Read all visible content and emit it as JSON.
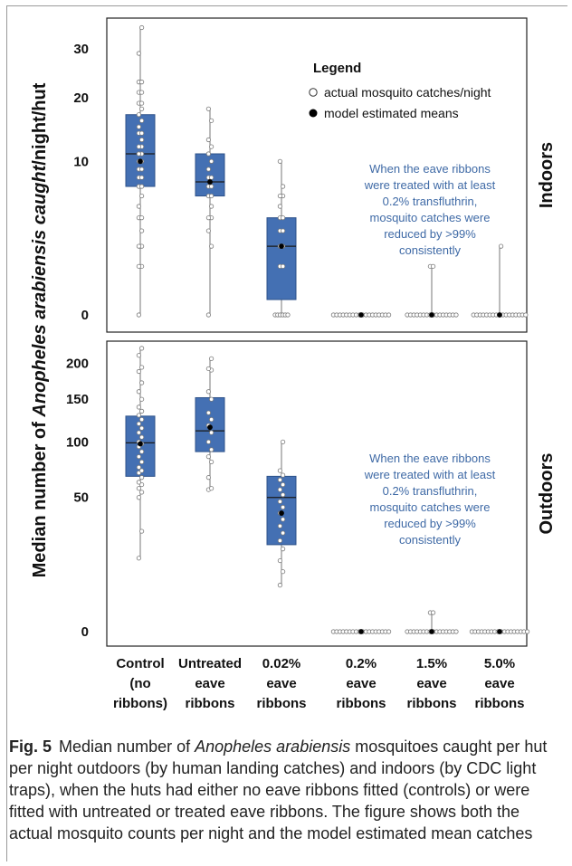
{
  "colors": {
    "box_fill": "#4470b3",
    "box_stroke": "#2e528a",
    "annotation": "#3f6aa6",
    "point_stroke": "#7a7a7a"
  },
  "chart_data": {
    "type": "box",
    "y_title_parts": [
      {
        "text": "Median number of ",
        "italic": false
      },
      {
        "text": "Anopheles arabiensis caught",
        "italic": true
      },
      {
        "text": "/night/hut",
        "italic": false
      }
    ],
    "categories": [
      [
        "Control",
        "(no",
        "ribbons)"
      ],
      [
        "Untreated",
        "eave",
        "ribbons"
      ],
      [
        "0.02%",
        "eave",
        "ribbons"
      ],
      [
        "0.2%",
        "eave",
        "ribbons"
      ],
      [
        "1.5%",
        "eave",
        "ribbons"
      ],
      [
        "5.0%",
        "eave",
        "ribbons"
      ]
    ],
    "legend": {
      "title": "Legend",
      "items": [
        {
          "label": "actual mosquito catches/night",
          "marker": "open-circle"
        },
        {
          "label": "model estimated means",
          "marker": "filled-circle"
        }
      ]
    },
    "panels": [
      {
        "name": "Indoors",
        "scale": "sqrt",
        "ylim": [
          0,
          36
        ],
        "yticks": [
          0,
          10,
          20,
          30
        ],
        "annotation": [
          "When the eave ribbons",
          "were treated with at least",
          "0.2% transfluthrin,",
          "mosquito catches were",
          "reduced by >99%",
          "consistently"
        ],
        "groups": [
          {
            "category": "Control",
            "q1": 7,
            "median": 11,
            "q3": 17,
            "whisker_low": 0,
            "whisker_high": 35,
            "mean": 10,
            "points": [
              0,
              1,
              1,
              2,
              2,
              3,
              4,
              4,
              5,
              6,
              7,
              7,
              8,
              8,
              9,
              9,
              10,
              10,
              11,
              11,
              11,
              12,
              12,
              13,
              14,
              14,
              15,
              16,
              17,
              18,
              19,
              19,
              21,
              21,
              23,
              23,
              29,
              35
            ]
          },
          {
            "category": "Untreated",
            "q1": 6,
            "median": 7.5,
            "q3": 11,
            "whisker_low": 0,
            "whisker_high": 18,
            "mean": 7.5,
            "points": [
              0,
              2,
              3,
              4,
              4,
              5,
              6,
              6,
              7,
              7,
              8,
              8,
              9,
              10,
              11,
              12,
              13,
              16,
              18
            ]
          },
          {
            "category": "0.02%",
            "q1": 0.1,
            "median": 2,
            "q3": 4,
            "whisker_low": 0,
            "whisker_high": 10,
            "mean": 2,
            "points": [
              0,
              0,
              0,
              0,
              0,
              0,
              1,
              1,
              2,
              2,
              3,
              3,
              4,
              4,
              5,
              6,
              6,
              7,
              10
            ]
          },
          {
            "category": "0.2%",
            "q1": 0,
            "median": 0,
            "q3": 0,
            "whisker_low": 0,
            "whisker_high": 0,
            "mean": 0,
            "points": [
              0,
              0,
              0,
              0,
              0,
              0,
              0,
              0,
              0,
              0,
              0,
              0,
              0,
              0,
              0,
              0,
              0,
              0
            ]
          },
          {
            "category": "1.5%",
            "q1": 0,
            "median": 0,
            "q3": 0,
            "whisker_low": 0,
            "whisker_high": 1,
            "mean": 0,
            "points": [
              0,
              0,
              0,
              0,
              0,
              0,
              0,
              0,
              0,
              0,
              0,
              0,
              0,
              0,
              0,
              0,
              1,
              1
            ]
          },
          {
            "category": "5.0%",
            "q1": 0,
            "median": 0,
            "q3": 0,
            "whisker_low": 0,
            "whisker_high": 2,
            "mean": 0,
            "points": [
              0,
              0,
              0,
              0,
              0,
              0,
              0,
              0,
              0,
              0,
              0,
              0,
              0,
              0,
              0,
              0,
              0,
              2
            ]
          }
        ]
      },
      {
        "name": "Outdoors",
        "scale": "sqrt",
        "ylim": [
          0,
          230
        ],
        "yticks": [
          0,
          50,
          100,
          150,
          200
        ],
        "annotation": [
          "When the eave ribbons",
          "were treated with at least",
          "0.2% transfluthrin,",
          "mosquito catches were",
          "reduced by >99%",
          "consistently"
        ],
        "groups": [
          {
            "category": "Control",
            "q1": 67,
            "median": 99,
            "q3": 129,
            "whisker_low": 15,
            "whisker_high": 223,
            "mean": 98,
            "points": [
              15,
              28,
              50,
              54,
              57,
              60,
              62,
              66,
              70,
              72,
              75,
              80,
              85,
              90,
              95,
              98,
              100,
              105,
              110,
              115,
              120,
              125,
              130,
              135,
              140,
              150,
              160,
              172,
              188,
              194,
              212,
              223
            ]
          },
          {
            "category": "Untreated",
            "q1": 90,
            "median": 112,
            "q3": 152,
            "whisker_low": 56,
            "whisker_high": 207,
            "mean": 116,
            "points": [
              56,
              57,
              66,
              80,
              85,
              92,
              100,
              110,
              118,
              125,
              133,
              150,
              160,
              190,
              192,
              207
            ]
          },
          {
            "category": "0.02%",
            "q1": 21,
            "median": 50,
            "q3": 67,
            "whisker_low": 6,
            "whisker_high": 100,
            "mean": 39,
            "points": [
              6,
              10,
              14,
              19,
              23,
              27,
              31,
              35,
              39,
              43,
              47,
              52,
              56,
              60,
              64,
              68,
              72,
              100
            ]
          },
          {
            "category": "0.2%",
            "q1": 0,
            "median": 0,
            "q3": 0,
            "whisker_low": 0,
            "whisker_high": 0,
            "mean": 0,
            "points": [
              0,
              0,
              0,
              0,
              0,
              0,
              0,
              0,
              0,
              0,
              0,
              0,
              0,
              0,
              0,
              0,
              0,
              0
            ]
          },
          {
            "category": "1.5%",
            "q1": 0,
            "median": 0,
            "q3": 0,
            "whisker_low": 0,
            "whisker_high": 1,
            "mean": 0,
            "points": [
              0,
              0,
              0,
              0,
              0,
              0,
              0,
              0,
              0,
              0,
              0,
              0,
              0,
              0,
              0,
              0,
              1,
              1
            ]
          },
          {
            "category": "5.0%",
            "q1": 0,
            "median": 0,
            "q3": 0,
            "whisker_low": 0,
            "whisker_high": 0,
            "mean": 0,
            "points": [
              0,
              0,
              0,
              0,
              0,
              0,
              0,
              0,
              0,
              0,
              0,
              0,
              0,
              0,
              0,
              0,
              0,
              0
            ]
          }
        ]
      }
    ]
  },
  "caption": {
    "label": "Fig. 5",
    "pre": "Median number of ",
    "italic": "Anopheles arabiensis",
    "post": " mosquitoes caught per hut per night outdoors (by human landing catches) and indoors (by CDC light traps), when the huts had either no eave ribbons fitted (controls) or were fitted with untreated or treated eave ribbons. The figure shows both the actual mosquito counts per night and the model estimated mean catches"
  }
}
